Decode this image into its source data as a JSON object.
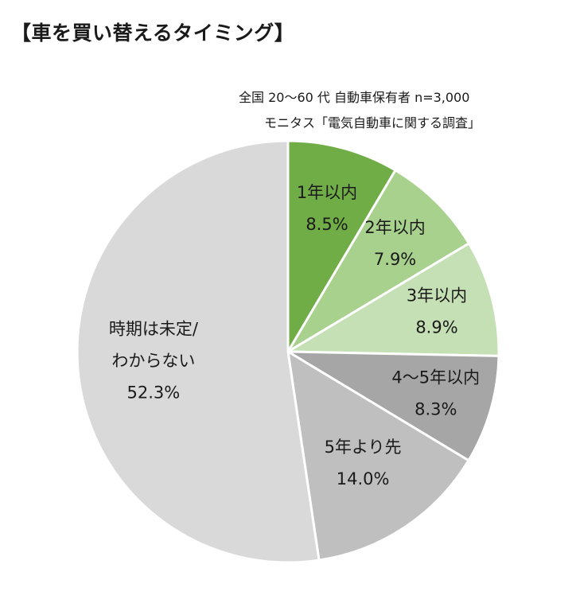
{
  "title": "【車を買い替えるタイミング】",
  "source": {
    "line1": "全国 20～60 代  自動車保有者      n=3,000",
    "line2": "モニタス「電気自動車に関する調査」"
  },
  "colors": {
    "1年以内": "#70ad47",
    "2年以内": "#a9d18e",
    "3年以内": "#c5e0b4",
    "4～5年以内": "#a6a6a6",
    "5年より先": "#bfbfbf",
    "時期は未定/わからない": "#d9d9d9"
  },
  "chart_data": {
    "type": "pie",
    "title": "【車を買い替えるタイミング】",
    "start": "12 o'clock, clockwise",
    "slices": [
      {
        "label_lines": [
          "1年以内"
        ],
        "value": 8.5,
        "value_text": "8.5%",
        "color": "#70ad47"
      },
      {
        "label_lines": [
          "2年以内"
        ],
        "value": 7.9,
        "value_text": "7.9%",
        "color": "#a9d18e"
      },
      {
        "label_lines": [
          "3年以内"
        ],
        "value": 8.9,
        "value_text": "8.9%",
        "color": "#c5e0b4"
      },
      {
        "label_lines": [
          "4～5年以内"
        ],
        "value": 8.3,
        "value_text": "8.3%",
        "color": "#a6a6a6"
      },
      {
        "label_lines": [
          "5年より先"
        ],
        "value": 14.0,
        "value_text": "14.0%",
        "color": "#bfbfbf"
      },
      {
        "label_lines": [
          "時期は未定/",
          "わからない"
        ],
        "value": 52.3,
        "value_text": "52.3%",
        "color": "#d9d9d9"
      }
    ]
  }
}
